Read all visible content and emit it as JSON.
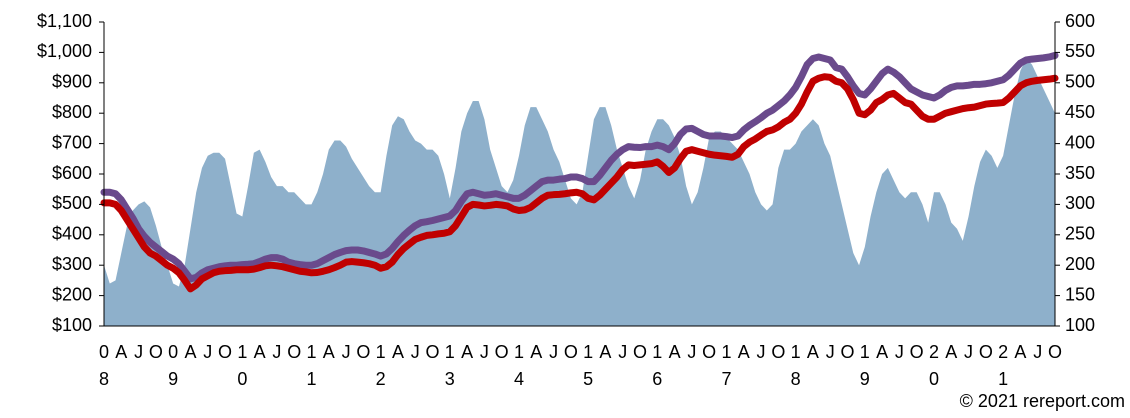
{
  "chart_data": {
    "type": "line",
    "categories": [
      "08",
      null,
      null,
      "A",
      null,
      null,
      "J",
      null,
      null,
      "O",
      null,
      null,
      "09",
      null,
      null,
      "A",
      null,
      null,
      "J",
      null,
      null,
      "O",
      null,
      null,
      "10",
      null,
      null,
      "A",
      null,
      null,
      "J",
      null,
      null,
      "O",
      null,
      null,
      "11",
      null,
      null,
      "A",
      null,
      null,
      "J",
      null,
      null,
      "O",
      null,
      null,
      "12",
      null,
      null,
      "A",
      null,
      null,
      "J",
      null,
      null,
      "O",
      null,
      null,
      "13",
      null,
      null,
      "A",
      null,
      null,
      "J",
      null,
      null,
      "O",
      null,
      null,
      "14",
      null,
      null,
      "A",
      null,
      null,
      "J",
      null,
      null,
      "O",
      null,
      null,
      "15",
      null,
      null,
      "A",
      null,
      null,
      "J",
      null,
      null,
      "O",
      null,
      null,
      "16",
      null,
      null,
      "A",
      null,
      null,
      "J",
      null,
      null,
      "O",
      null,
      null,
      "17",
      null,
      null,
      "A",
      null,
      null,
      "J",
      null,
      null,
      "O",
      null,
      null,
      "18",
      null,
      null,
      "A",
      null,
      null,
      "J",
      null,
      null,
      "O",
      null,
      null,
      "19",
      null,
      null,
      "A",
      null,
      null,
      "J",
      null,
      null,
      "O",
      null,
      null,
      "20",
      null,
      null,
      "A",
      null,
      null,
      "J",
      null,
      null,
      "O",
      null,
      null,
      "21",
      null,
      null,
      "A",
      null,
      null,
      "J",
      null,
      null,
      "O"
    ],
    "series": [
      {
        "style": "area",
        "axis": "y2",
        "color": "#8eb0cb",
        "values": [
          200,
          170,
          175,
          220,
          265,
          290,
          300,
          305,
          295,
          265,
          230,
          200,
          170,
          165,
          200,
          260,
          320,
          360,
          380,
          385,
          385,
          375,
          330,
          285,
          280,
          330,
          385,
          390,
          370,
          345,
          330,
          330,
          320,
          320,
          310,
          300,
          300,
          320,
          350,
          390,
          405,
          405,
          395,
          375,
          360,
          345,
          330,
          320,
          320,
          380,
          430,
          445,
          440,
          420,
          405,
          400,
          390,
          390,
          380,
          350,
          310,
          360,
          420,
          450,
          470,
          470,
          440,
          390,
          360,
          330,
          320,
          340,
          380,
          430,
          460,
          460,
          440,
          420,
          390,
          370,
          340,
          310,
          300,
          320,
          380,
          440,
          460,
          460,
          430,
          390,
          360,
          330,
          310,
          340,
          390,
          420,
          440,
          440,
          430,
          410,
          380,
          330,
          300,
          320,
          360,
          410,
          420,
          420,
          410,
          400,
          390,
          370,
          350,
          320,
          300,
          290,
          300,
          360,
          390,
          390,
          400,
          420,
          430,
          440,
          430,
          400,
          380,
          340,
          300,
          260,
          220,
          200,
          230,
          280,
          320,
          350,
          360,
          340,
          320,
          310,
          320,
          320,
          300,
          270,
          320,
          320,
          300,
          270,
          260,
          240,
          280,
          330,
          370,
          390,
          380,
          360,
          380,
          430,
          480,
          520,
          540,
          530,
          510,
          490,
          470,
          450
        ]
      },
      {
        "style": "line",
        "color": "#6a4a8c",
        "values": [
          540,
          540,
          535,
          515,
          485,
          455,
          420,
          395,
          375,
          360,
          345,
          330,
          320,
          305,
          280,
          255,
          260,
          275,
          285,
          290,
          295,
          298,
          300,
          300,
          302,
          303,
          305,
          312,
          320,
          325,
          325,
          320,
          310,
          305,
          302,
          300,
          300,
          305,
          315,
          325,
          335,
          342,
          348,
          350,
          350,
          347,
          342,
          337,
          330,
          337,
          355,
          378,
          398,
          415,
          430,
          440,
          443,
          447,
          452,
          457,
          462,
          480,
          510,
          535,
          540,
          535,
          530,
          532,
          535,
          530,
          525,
          520,
          520,
          530,
          545,
          560,
          575,
          580,
          580,
          583,
          585,
          590,
          590,
          585,
          575,
          575,
          595,
          620,
          645,
          665,
          680,
          690,
          688,
          687,
          690,
          690,
          695,
          690,
          680,
          700,
          730,
          748,
          750,
          740,
          730,
          725,
          725,
          725,
          723,
          720,
          725,
          745,
          760,
          772,
          785,
          800,
          810,
          825,
          840,
          860,
          885,
          920,
          960,
          980,
          985,
          980,
          975,
          950,
          945,
          920,
          890,
          865,
          860,
          880,
          905,
          930,
          945,
          935,
          920,
          900,
          880,
          870,
          860,
          855,
          850,
          860,
          875,
          885,
          890,
          890,
          892,
          895,
          895,
          897,
          900,
          905,
          910,
          925,
          945,
          965,
          975,
          978,
          980,
          982,
          985,
          990
        ]
      },
      {
        "style": "line",
        "color": "#c00000",
        "values": [
          505,
          505,
          500,
          480,
          450,
          420,
          390,
          360,
          340,
          330,
          315,
          300,
          290,
          275,
          250,
          222,
          235,
          255,
          265,
          275,
          280,
          282,
          283,
          285,
          285,
          285,
          287,
          292,
          298,
          300,
          298,
          295,
          290,
          285,
          280,
          278,
          275,
          276,
          280,
          285,
          292,
          300,
          310,
          312,
          310,
          308,
          305,
          300,
          290,
          295,
          310,
          335,
          355,
          370,
          385,
          392,
          398,
          400,
          403,
          405,
          410,
          430,
          460,
          490,
          500,
          498,
          495,
          497,
          500,
          498,
          495,
          485,
          480,
          482,
          490,
          505,
          520,
          530,
          532,
          533,
          535,
          538,
          540,
          535,
          520,
          515,
          530,
          550,
          570,
          590,
          615,
          630,
          628,
          630,
          632,
          634,
          640,
          625,
          605,
          620,
          650,
          675,
          680,
          675,
          670,
          665,
          662,
          660,
          658,
          655,
          665,
          690,
          705,
          715,
          728,
          740,
          745,
          755,
          770,
          780,
          800,
          830,
          870,
          905,
          915,
          920,
          918,
          905,
          900,
          880,
          845,
          800,
          795,
          810,
          835,
          845,
          860,
          865,
          850,
          835,
          830,
          810,
          790,
          780,
          780,
          790,
          800,
          805,
          810,
          815,
          818,
          820,
          825,
          830,
          832,
          833,
          835,
          850,
          870,
          890,
          900,
          905,
          908,
          910,
          912,
          915
        ]
      }
    ],
    "ylim": [
      100,
      1100
    ],
    "yticks": [
      {
        "value": 100,
        "label": "$100"
      },
      {
        "value": 200,
        "label": "$200"
      },
      {
        "value": 300,
        "label": "$300"
      },
      {
        "value": 400,
        "label": "$400"
      },
      {
        "value": 500,
        "label": "$500"
      },
      {
        "value": 600,
        "label": "$600"
      },
      {
        "value": 700,
        "label": "$700"
      },
      {
        "value": 800,
        "label": "$800"
      },
      {
        "value": 900,
        "label": "$900"
      },
      {
        "value": 1000,
        "label": "$1,000"
      },
      {
        "value": 1100,
        "label": "$1,100"
      }
    ],
    "y2lim": [
      100,
      600
    ],
    "y2ticks": [
      100,
      150,
      200,
      250,
      300,
      350,
      400,
      450,
      500,
      550,
      600
    ],
    "credit": "© 2021 rereport.com"
  }
}
